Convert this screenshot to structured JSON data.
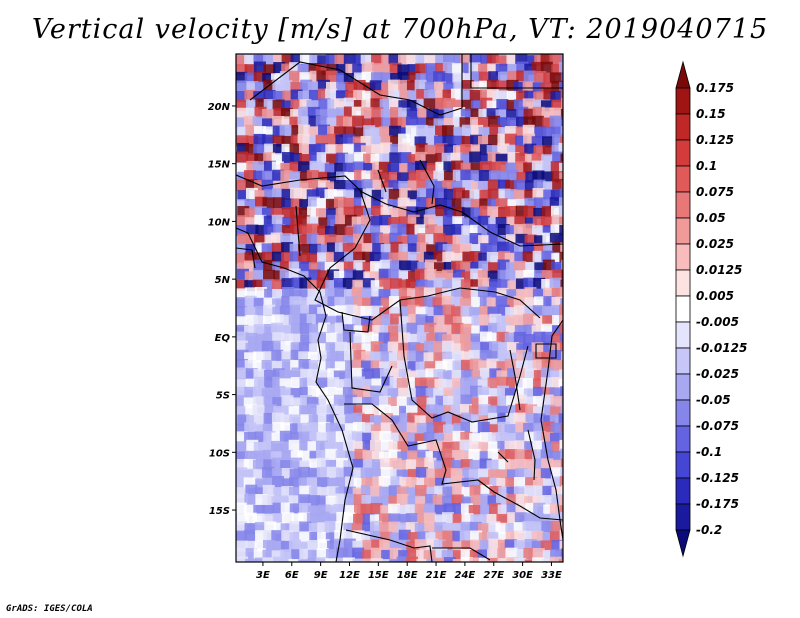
{
  "title": "Vertical velocity [m/s] at 700hPa, VT: 2019040715",
  "credit": "GrADS: IGES/COLA",
  "map": {
    "lat_labels": [
      "20N",
      "15N",
      "10N",
      "5N",
      "EQ",
      "5S",
      "10S",
      "15S"
    ],
    "lat_values": [
      20,
      15,
      10,
      5,
      0,
      -5,
      -10,
      -15
    ],
    "lon_labels": [
      "3E",
      "6E",
      "9E",
      "12E",
      "15E",
      "18E",
      "21E",
      "24E",
      "27E",
      "30E",
      "33E"
    ],
    "lon_values": [
      3,
      6,
      9,
      12,
      15,
      18,
      21,
      24,
      27,
      30,
      33
    ],
    "lat_range": [
      -19.5,
      24.5
    ],
    "lon_range": [
      0.2,
      34.2
    ],
    "variable": "Vertical velocity",
    "units": "m/s",
    "level": "700hPa",
    "valid_time": "2019040715"
  },
  "colorbar": {
    "labels": [
      "0.175",
      "0.15",
      "0.125",
      "0.1",
      "0.075",
      "0.05",
      "0.025",
      "0.0125",
      "0.005",
      "-0.005",
      "-0.0125",
      "-0.025",
      "-0.05",
      "-0.075",
      "-0.1",
      "-0.125",
      "-0.175",
      "-0.2"
    ],
    "colors": [
      "#7a0a0a",
      "#a01414",
      "#c02828",
      "#d43c3c",
      "#e05a5a",
      "#e87878",
      "#f09a9a",
      "#f8bcbc",
      "#fde2e2",
      "#ffffff",
      "#e4e4fc",
      "#c6c6f8",
      "#a8a8f2",
      "#8686ea",
      "#6464e2",
      "#4646d4",
      "#2a2abc",
      "#1a1a9e",
      "#0a0a7a"
    ]
  }
}
